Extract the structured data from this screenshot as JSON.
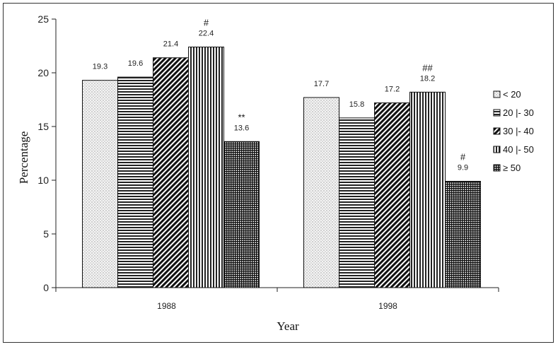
{
  "chart_data": {
    "type": "bar",
    "categories": [
      "1988",
      "1998"
    ],
    "series": [
      {
        "name": "< 20",
        "values": [
          19.3,
          17.7
        ],
        "pattern": "dots"
      },
      {
        "name": "20 |- 30",
        "values": [
          19.6,
          15.8
        ],
        "pattern": "hlines"
      },
      {
        "name": "30 |- 40",
        "values": [
          21.4,
          17.2
        ],
        "pattern": "diag-dense"
      },
      {
        "name": "40 |- 50",
        "values": [
          22.4,
          18.2
        ],
        "pattern": "vlines"
      },
      {
        "name": "≥ 50",
        "values": [
          13.6,
          9.9
        ],
        "pattern": "grid"
      }
    ],
    "data_labels": [
      [
        "19.3",
        "17.7"
      ],
      [
        "19.6",
        "15.8"
      ],
      [
        "21.4",
        "17.2"
      ],
      [
        "22.4",
        "18.2"
      ],
      [
        "13.6",
        "9.9"
      ]
    ],
    "significance_marks": [
      [
        "",
        ""
      ],
      [
        "",
        ""
      ],
      [
        "",
        ""
      ],
      [
        "#",
        "##"
      ],
      [
        "**",
        "#"
      ]
    ],
    "xlabel": "Year",
    "ylabel": "Percentage",
    "ylim": [
      0,
      25
    ],
    "yticks": [
      0,
      5,
      10,
      15,
      20,
      25
    ],
    "grid": false,
    "legend_position": "right"
  }
}
